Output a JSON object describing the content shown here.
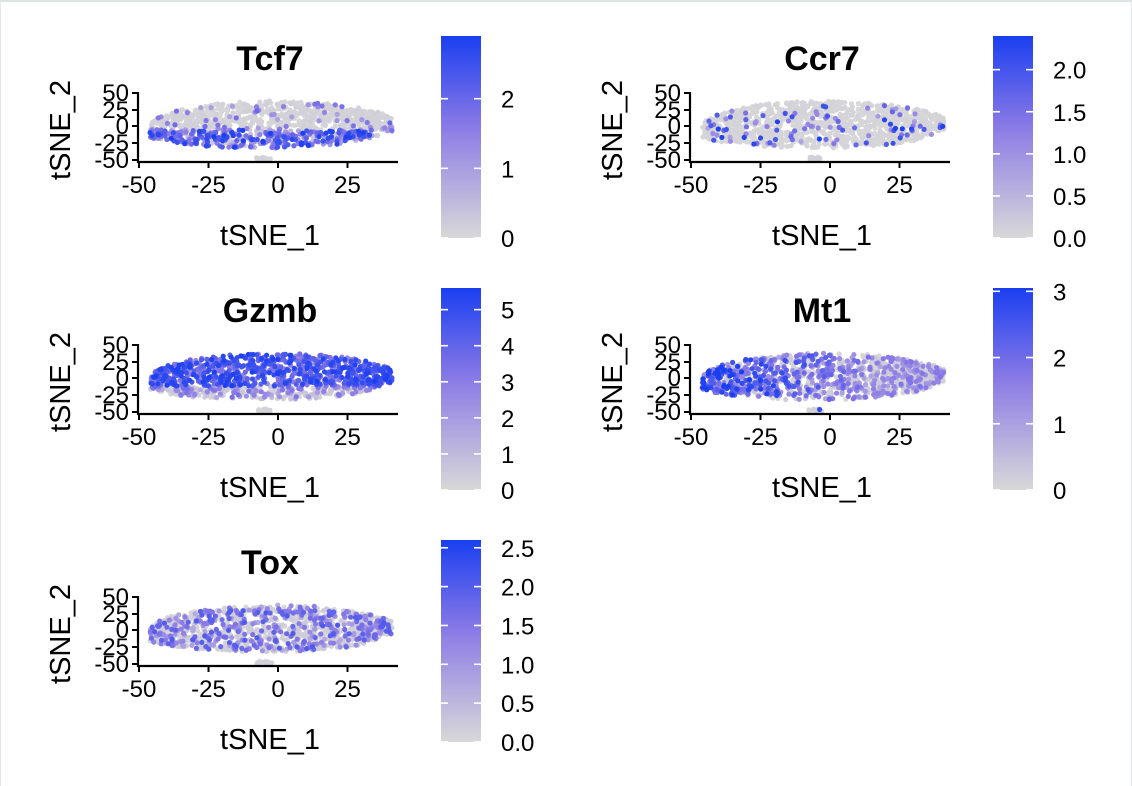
{
  "colors": {
    "low": "#d8d8d8",
    "high": "#1a3ff0",
    "mid": "#8b7ae6"
  },
  "chart_data": [
    {
      "type": "scatter",
      "title": "Tcf7",
      "xlabel": "tSNE_1",
      "ylabel": "tSNE_2",
      "xlim": [
        -55,
        47
      ],
      "ylim": [
        -60,
        55
      ],
      "xticks": [
        "-50",
        "-25",
        "0",
        "25"
      ],
      "yticks": [
        "-50",
        "-25",
        "0",
        "25",
        "50"
      ],
      "legend": {
        "min": 0,
        "max": 2.9,
        "ticks": [
          0,
          1,
          2
        ],
        "tick_labels": [
          "0",
          "1",
          "2"
        ]
      },
      "pattern": "bottom"
    },
    {
      "type": "scatter",
      "title": "Ccr7",
      "xlabel": "tSNE_1",
      "ylabel": "tSNE_2",
      "xlim": [
        -55,
        47
      ],
      "ylim": [
        -60,
        55
      ],
      "xticks": [
        "-50",
        "-25",
        "0",
        "25"
      ],
      "yticks": [
        "-50",
        "-25",
        "0",
        "25",
        "50"
      ],
      "legend": {
        "min": 0,
        "max": 2.4,
        "ticks": [
          0,
          0.5,
          1,
          1.5,
          2
        ],
        "tick_labels": [
          "0.0",
          "0.5",
          "1.0",
          "1.5",
          "2.0"
        ]
      },
      "pattern": "sparse"
    },
    {
      "type": "scatter",
      "title": "Gzmb",
      "xlabel": "tSNE_1",
      "ylabel": "tSNE_2",
      "xlim": [
        -55,
        47
      ],
      "ylim": [
        -60,
        55
      ],
      "xticks": [
        "-50",
        "-25",
        "0",
        "25"
      ],
      "yticks": [
        "-50",
        "-25",
        "0",
        "25",
        "50"
      ],
      "legend": {
        "min": 0,
        "max": 5.6,
        "ticks": [
          0,
          1,
          2,
          3,
          4,
          5
        ],
        "tick_labels": [
          "0",
          "1",
          "2",
          "3",
          "4",
          "5"
        ]
      },
      "pattern": "top"
    },
    {
      "type": "scatter",
      "title": "Mt1",
      "xlabel": "tSNE_1",
      "ylabel": "tSNE_2",
      "xlim": [
        -55,
        47
      ],
      "ylim": [
        -60,
        55
      ],
      "xticks": [
        "-50",
        "-25",
        "0",
        "25"
      ],
      "yticks": [
        "-50",
        "-25",
        "0",
        "25",
        "50"
      ],
      "legend": {
        "min": 0,
        "max": 3.05,
        "ticks": [
          0,
          1,
          2,
          3
        ],
        "tick_labels": [
          "0",
          "1",
          "2",
          "3"
        ]
      },
      "pattern": "left"
    },
    {
      "type": "scatter",
      "title": "Tox",
      "xlabel": "tSNE_1",
      "ylabel": "tSNE_2",
      "xlim": [
        -55,
        47
      ],
      "ylim": [
        -60,
        55
      ],
      "xticks": [
        "-50",
        "-25",
        "0",
        "25"
      ],
      "yticks": [
        "-50",
        "-25",
        "0",
        "25",
        "50"
      ],
      "legend": {
        "min": 0,
        "max": 2.6,
        "ticks": [
          0,
          0.5,
          1,
          1.5,
          2,
          2.5
        ],
        "tick_labels": [
          "0.0",
          "0.5",
          "1.0",
          "1.5",
          "2.0",
          "2.5"
        ]
      },
      "pattern": "diffuse"
    }
  ]
}
